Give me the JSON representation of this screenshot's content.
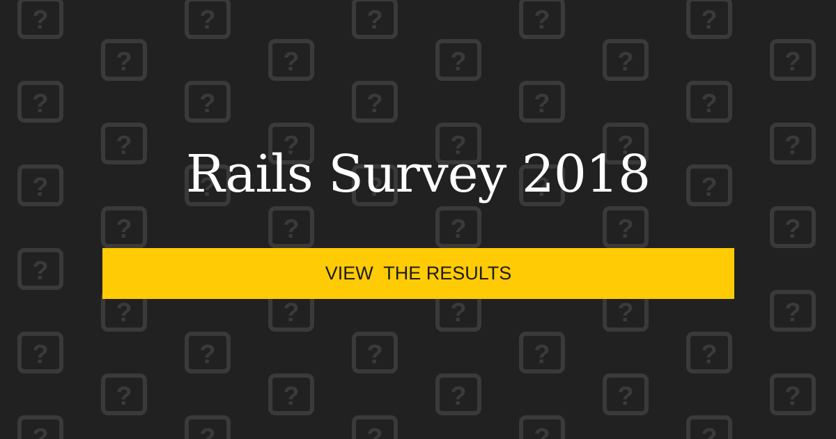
{
  "page": {
    "title": "Rails Survey 2018",
    "background_color": "#212121",
    "pattern_icon": "question-mark-box-icon",
    "pattern_color": "#3a3a3a"
  },
  "cta": {
    "label": "VIEW  THE RESULTS",
    "background_color": "#ffcb05",
    "text_color": "#1c1c1c"
  }
}
